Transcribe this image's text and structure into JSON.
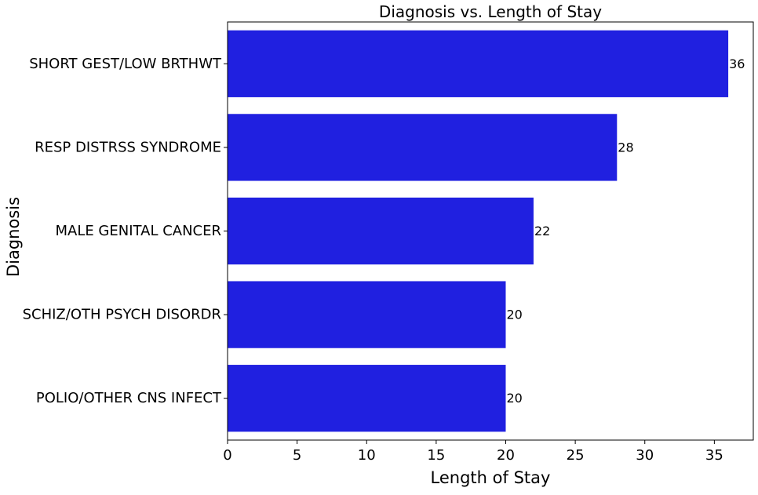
{
  "chart_data": {
    "type": "bar",
    "orientation": "horizontal",
    "title": "Diagnosis vs. Length of Stay",
    "xlabel": "Length of Stay",
    "ylabel": "Diagnosis",
    "categories": [
      "SHORT GEST/LOW BRTHWT",
      "RESP DISTRSS SYNDROME",
      "MALE GENITAL CANCER",
      "SCHIZ/OTH PSYCH DISORDR",
      "POLIO/OTHER CNS INFECT"
    ],
    "values": [
      36,
      28,
      22,
      20,
      20
    ],
    "data_labels": [
      "36",
      "28",
      "22",
      "20",
      "20"
    ],
    "xticks": [
      0,
      5,
      10,
      15,
      20,
      25,
      30,
      35
    ],
    "xtick_labels": [
      "0",
      "5",
      "10",
      "15",
      "20",
      "25",
      "30",
      "35"
    ],
    "xlim": [
      0,
      37.8
    ],
    "grid": false,
    "legend": "none",
    "bar_color": "#2020e0"
  }
}
